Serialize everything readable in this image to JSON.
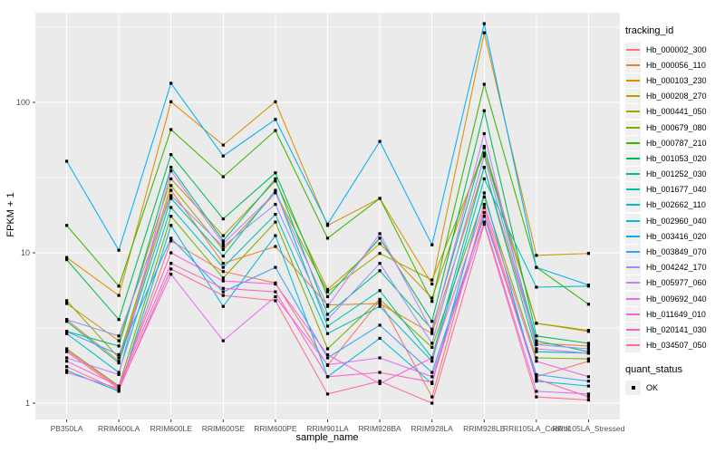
{
  "figure": {
    "x_axis_label": "sample_name",
    "y_axis_label": "FPKM + 1"
  },
  "legend": {
    "tracking_title": "tracking_id",
    "quant_title": "quant_status",
    "quant_ok_label": "OK"
  },
  "chart_data": {
    "type": "line",
    "title": "",
    "xlabel": "sample_name",
    "ylabel": "FPKM + 1",
    "y_scale": "log10",
    "ylim": [
      1,
      400
    ],
    "y_major_ticks": [
      1,
      10,
      100
    ],
    "y_minor_ticks": [
      3.162,
      31.62,
      316.2
    ],
    "grid": true,
    "legend_position": "right",
    "panel_background": "#EBEBEB",
    "grid_color": "#FFFFFF",
    "tick_text_color": "#4D4D4D",
    "marker": "black-square",
    "marker_meaning": "quant_status OK",
    "categories": [
      "PB350LA",
      "RRIM600LA",
      "RRIM600LE",
      "RRIM600SE",
      "RRIM600PE",
      "RRIM901LA",
      "RRIM928BA",
      "RRIM928LA",
      "RRIM928LE",
      "RRII105LA_Control",
      "RRII105LA_Stressed"
    ],
    "series": [
      {
        "name": "Hb_000002_300",
        "color": "#F8766D",
        "values": [
          2.2,
          1.25,
          12,
          7.5,
          6.3,
          1.78,
          4.8,
          1.1,
          20,
          1.5,
          1.9
        ]
      },
      {
        "name": "Hb_000056_110",
        "color": "#EA8331",
        "values": [
          3.6,
          1.9,
          26,
          8.5,
          11,
          4.5,
          4.6,
          2.9,
          37,
          2.5,
          2.4
        ]
      },
      {
        "name": "Hb_000103_230",
        "color": "#D89000",
        "values": [
          9.3,
          5.2,
          101,
          52,
          101,
          15.2,
          23,
          6.2,
          290,
          9.6,
          9.9
        ]
      },
      {
        "name": "Hb_000208_270",
        "color": "#C09B00",
        "values": [
          4.6,
          2.6,
          31,
          13,
          30,
          5.7,
          11.5,
          5.0,
          50,
          3.4,
          3.0
        ]
      },
      {
        "name": "Hb_000441_050",
        "color": "#A3A500",
        "values": [
          4.8,
          2.0,
          28,
          10.5,
          25,
          5.5,
          9.9,
          6.6,
          46,
          3.4,
          3.05
        ]
      },
      {
        "name": "Hb_000679_080",
        "color": "#7CAE00",
        "values": [
          2.3,
          1.3,
          17.5,
          6.8,
          16,
          2.3,
          4.9,
          2.35,
          23.5,
          2.0,
          1.97
        ]
      },
      {
        "name": "Hb_000787_210",
        "color": "#39B600",
        "values": [
          15.2,
          6.0,
          66,
          32,
          65,
          12.5,
          23,
          4.75,
          132,
          8.0,
          4.55
        ]
      },
      {
        "name": "Hb_001053_020",
        "color": "#00BB4E",
        "values": [
          9.0,
          3.6,
          45,
          16.8,
          34,
          5.1,
          12.5,
          3.5,
          88,
          2.8,
          2.5
        ]
      },
      {
        "name": "Hb_001252_030",
        "color": "#00BF7D",
        "values": [
          3.0,
          2.4,
          37,
          12,
          31,
          3.9,
          7.6,
          3.1,
          51,
          2.6,
          2.2
        ]
      },
      {
        "name": "Hb_001677_040",
        "color": "#00C1A3",
        "values": [
          3.5,
          1.85,
          23,
          9.5,
          26,
          3.25,
          5.6,
          2.0,
          37,
          2.2,
          2.15
        ]
      },
      {
        "name": "Hb_002662_110",
        "color": "#00BFC4",
        "values": [
          2.9,
          1.6,
          20,
          8.0,
          18,
          2.9,
          4.4,
          1.9,
          31,
          5.9,
          6.0
        ]
      },
      {
        "name": "Hb_002960_040",
        "color": "#00BAE0",
        "values": [
          1.65,
          1.2,
          15.2,
          4.4,
          13,
          1.5,
          2.7,
          1.35,
          25,
          1.4,
          1.3
        ]
      },
      {
        "name": "Hb_003416_020",
        "color": "#00B0F6",
        "values": [
          40.6,
          10.4,
          134,
          44,
          77,
          15.5,
          55,
          11.3,
          334,
          8.0,
          6.1
        ]
      },
      {
        "name": "Hb_003849_070",
        "color": "#35A2FF",
        "values": [
          3.0,
          2.1,
          12.5,
          5.5,
          8.0,
          2.0,
          3.3,
          1.6,
          17.5,
          1.55,
          1.4
        ]
      },
      {
        "name": "Hb_004242_170",
        "color": "#9590FF",
        "values": [
          3.6,
          2.8,
          24,
          11,
          21,
          3.6,
          8.5,
          2.5,
          44,
          2.45,
          2.3
        ]
      },
      {
        "name": "Hb_005977_060",
        "color": "#C77CFF",
        "values": [
          2.0,
          1.55,
          35,
          11.5,
          25,
          4.4,
          13.4,
          3.0,
          62,
          2.3,
          2.15
        ]
      },
      {
        "name": "Hb_009692_040",
        "color": "#E76BF3",
        "values": [
          1.6,
          1.25,
          7.2,
          2.6,
          5.1,
          1.8,
          2.0,
          1.5,
          16,
          1.2,
          1.15
        ]
      },
      {
        "name": "Hb_011649_010",
        "color": "#FA62DB",
        "values": [
          1.9,
          1.3,
          10,
          6.5,
          6.2,
          2.1,
          1.35,
          2.0,
          21,
          1.9,
          1.5
        ]
      },
      {
        "name": "Hb_020141_030",
        "color": "#FF62BC",
        "values": [
          2.25,
          1.28,
          8.5,
          5.8,
          5.5,
          1.5,
          1.6,
          1.38,
          18.5,
          1.45,
          1.1
        ]
      },
      {
        "name": "Hb_034507_050",
        "color": "#FF6A98",
        "values": [
          1.75,
          1.22,
          7.8,
          5.2,
          4.8,
          1.15,
          1.4,
          1.0,
          15.5,
          1.1,
          1.05
        ]
      }
    ]
  }
}
